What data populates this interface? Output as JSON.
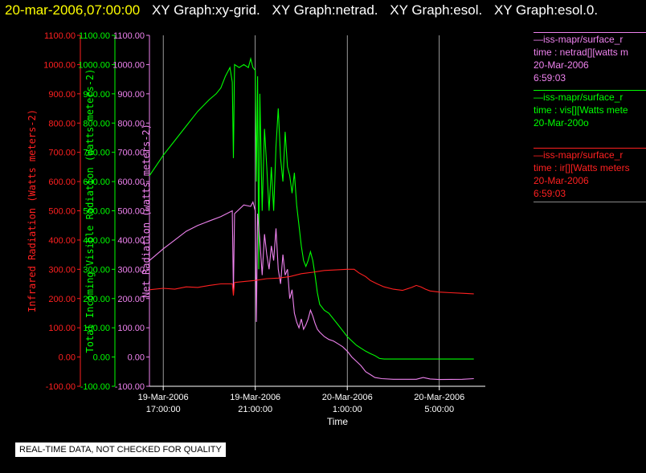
{
  "header": {
    "timestamp": "20-mar-2006,07:00:00",
    "tabs": [
      "XY Graph:xy-grid.",
      "XY Graph:netrad.",
      "XY Graph:esol.",
      "XY Graph:esol.0."
    ]
  },
  "legend": [
    {
      "lines": [
        "—iss-mapr/surface_r",
        "time : netrad[][watts m",
        "20-Mar-2006",
        "6:59:03"
      ],
      "color": "#ee82ee"
    },
    {
      "lines": [
        "—iss-mapr/surface_r",
        "time : vis[][Watts mete",
        "20-Mar-200o"
      ],
      "color": "#00ff00"
    },
    {
      "lines": [
        "—iss-mapr/surface_r",
        "time : ir[][Watts meters",
        "20-Mar-2006",
        "6:59:03"
      ],
      "color": "#ff2020"
    }
  ],
  "qc_notice": "REAL-TIME DATA, NOT CHECKED FOR QUALITY",
  "colors": {
    "ir": "#ff2020",
    "vis": "#00ff00",
    "net": "#ee82ee",
    "grid": "#dddddd",
    "axis": "#ffffff"
  },
  "chart_data": {
    "type": "line",
    "xlabel": "Time",
    "x_ticks": [
      {
        "label": [
          "19-Mar-2006",
          "17:00:00"
        ],
        "hours": 17
      },
      {
        "label": [
          "19-Mar-2006",
          "21:00:00"
        ],
        "hours": 21
      },
      {
        "label": [
          "20-Mar-2006",
          "1:00:00"
        ],
        "hours": 25
      },
      {
        "label": [
          "20-Mar-2006",
          "5:00:00"
        ],
        "hours": 29
      }
    ],
    "xlim_hours": [
      16.4,
      31.0
    ],
    "ylim": [
      -100,
      1100
    ],
    "y_ticks": [
      "1100.00",
      "1000.00",
      "900.00",
      "800.00",
      "700.00",
      "600.00",
      "500.00",
      "400.00",
      "300.00",
      "200.00",
      "100.00",
      "0.00",
      "-100.00"
    ],
    "axes": [
      {
        "label": "Infrared Radiation (Watts meters-2)",
        "color": "#ff2020"
      },
      {
        "label": "Total Incoming Visible Radiation (Watts meters-2)",
        "color": "#00ff00"
      },
      {
        "label": "Net Radiation (watts meters-2)",
        "color": "#ee82ee"
      }
    ],
    "series": [
      {
        "name": "time : vis[][Watts mete",
        "color": "#00ff00",
        "points": [
          [
            16.4,
            620
          ],
          [
            17.0,
            690
          ],
          [
            17.5,
            740
          ],
          [
            18.0,
            790
          ],
          [
            18.5,
            840
          ],
          [
            19.0,
            880
          ],
          [
            19.3,
            900
          ],
          [
            19.5,
            920
          ],
          [
            19.7,
            960
          ],
          [
            19.9,
            990
          ],
          [
            20.0,
            940
          ],
          [
            20.05,
            680
          ],
          [
            20.1,
            1000
          ],
          [
            20.3,
            990
          ],
          [
            20.5,
            1000
          ],
          [
            20.7,
            990
          ],
          [
            20.8,
            1020
          ],
          [
            20.9,
            990
          ],
          [
            21.0,
            980
          ],
          [
            21.05,
            600
          ],
          [
            21.1,
            960
          ],
          [
            21.15,
            300
          ],
          [
            21.2,
            900
          ],
          [
            21.3,
            500
          ],
          [
            21.4,
            780
          ],
          [
            21.5,
            650
          ],
          [
            21.6,
            500
          ],
          [
            21.7,
            650
          ],
          [
            21.8,
            500
          ],
          [
            21.9,
            720
          ],
          [
            22.0,
            850
          ],
          [
            22.1,
            680
          ],
          [
            22.2,
            600
          ],
          [
            22.3,
            770
          ],
          [
            22.4,
            650
          ],
          [
            22.5,
            620
          ],
          [
            22.6,
            560
          ],
          [
            22.7,
            630
          ],
          [
            22.8,
            520
          ],
          [
            22.9,
            450
          ],
          [
            23.0,
            380
          ],
          [
            23.1,
            330
          ],
          [
            23.2,
            310
          ],
          [
            23.3,
            330
          ],
          [
            23.4,
            360
          ],
          [
            23.5,
            330
          ],
          [
            23.6,
            280
          ],
          [
            23.7,
            220
          ],
          [
            23.8,
            180
          ],
          [
            24.0,
            160
          ],
          [
            24.2,
            150
          ],
          [
            24.4,
            130
          ],
          [
            24.6,
            110
          ],
          [
            24.8,
            90
          ],
          [
            25.0,
            70
          ],
          [
            25.2,
            55
          ],
          [
            25.4,
            40
          ],
          [
            25.6,
            30
          ],
          [
            25.8,
            20
          ],
          [
            26.0,
            12
          ],
          [
            26.2,
            5
          ],
          [
            26.4,
            -5
          ],
          [
            26.6,
            -7
          ],
          [
            27.0,
            -7
          ],
          [
            28.0,
            -7
          ],
          [
            29.0,
            -7
          ],
          [
            30.0,
            -7
          ],
          [
            30.5,
            -7
          ]
        ]
      },
      {
        "name": "time : netrad[][watts m",
        "color": "#ee82ee",
        "points": [
          [
            16.4,
            330
          ],
          [
            17.0,
            370
          ],
          [
            17.5,
            400
          ],
          [
            18.0,
            430
          ],
          [
            18.5,
            450
          ],
          [
            19.0,
            465
          ],
          [
            19.5,
            480
          ],
          [
            20.0,
            500
          ],
          [
            20.05,
            220
          ],
          [
            20.1,
            490
          ],
          [
            20.5,
            520
          ],
          [
            20.8,
            515
          ],
          [
            20.9,
            530
          ],
          [
            21.0,
            500
          ],
          [
            21.05,
            120
          ],
          [
            21.1,
            490
          ],
          [
            21.2,
            400
          ],
          [
            21.3,
            280
          ],
          [
            21.4,
            420
          ],
          [
            21.5,
            350
          ],
          [
            21.6,
            300
          ],
          [
            21.7,
            380
          ],
          [
            21.8,
            330
          ],
          [
            21.9,
            440
          ],
          [
            22.0,
            300
          ],
          [
            22.1,
            250
          ],
          [
            22.2,
            350
          ],
          [
            22.3,
            280
          ],
          [
            22.4,
            300
          ],
          [
            22.5,
            200
          ],
          [
            22.6,
            230
          ],
          [
            22.7,
            150
          ],
          [
            22.8,
            120
          ],
          [
            22.9,
            100
          ],
          [
            23.0,
            130
          ],
          [
            23.1,
            95
          ],
          [
            23.2,
            110
          ],
          [
            23.3,
            130
          ],
          [
            23.4,
            160
          ],
          [
            23.5,
            140
          ],
          [
            23.6,
            115
          ],
          [
            23.7,
            95
          ],
          [
            23.8,
            85
          ],
          [
            24.0,
            70
          ],
          [
            24.2,
            60
          ],
          [
            24.4,
            55
          ],
          [
            24.6,
            45
          ],
          [
            24.8,
            35
          ],
          [
            25.0,
            20
          ],
          [
            25.2,
            0
          ],
          [
            25.4,
            -15
          ],
          [
            25.6,
            -30
          ],
          [
            25.8,
            -50
          ],
          [
            26.0,
            -60
          ],
          [
            26.2,
            -70
          ],
          [
            26.5,
            -74
          ],
          [
            27.0,
            -76
          ],
          [
            28.0,
            -76
          ],
          [
            28.3,
            -70
          ],
          [
            28.6,
            -75
          ],
          [
            29.0,
            -77
          ],
          [
            30.0,
            -76
          ],
          [
            30.5,
            -74
          ]
        ]
      },
      {
        "name": "time : ir[][Watts meters",
        "color": "#ff2020",
        "points": [
          [
            16.4,
            230
          ],
          [
            17.0,
            235
          ],
          [
            17.5,
            232
          ],
          [
            18.0,
            240
          ],
          [
            18.5,
            238
          ],
          [
            19.0,
            245
          ],
          [
            19.5,
            250
          ],
          [
            20.0,
            250
          ],
          [
            20.05,
            210
          ],
          [
            20.1,
            255
          ],
          [
            20.5,
            258
          ],
          [
            21.0,
            262
          ],
          [
            21.5,
            268
          ],
          [
            22.0,
            270
          ],
          [
            22.5,
            275
          ],
          [
            23.0,
            285
          ],
          [
            23.5,
            290
          ],
          [
            24.0,
            296
          ],
          [
            24.5,
            298
          ],
          [
            25.0,
            300
          ],
          [
            25.3,
            300
          ],
          [
            25.5,
            288
          ],
          [
            25.8,
            275
          ],
          [
            26.0,
            262
          ],
          [
            26.3,
            250
          ],
          [
            26.6,
            240
          ],
          [
            27.0,
            232
          ],
          [
            27.4,
            228
          ],
          [
            27.8,
            238
          ],
          [
            28.0,
            245
          ],
          [
            28.2,
            240
          ],
          [
            28.4,
            232
          ],
          [
            28.6,
            226
          ],
          [
            29.0,
            222
          ],
          [
            29.5,
            220
          ],
          [
            30.0,
            218
          ],
          [
            30.5,
            216
          ]
        ]
      }
    ]
  }
}
